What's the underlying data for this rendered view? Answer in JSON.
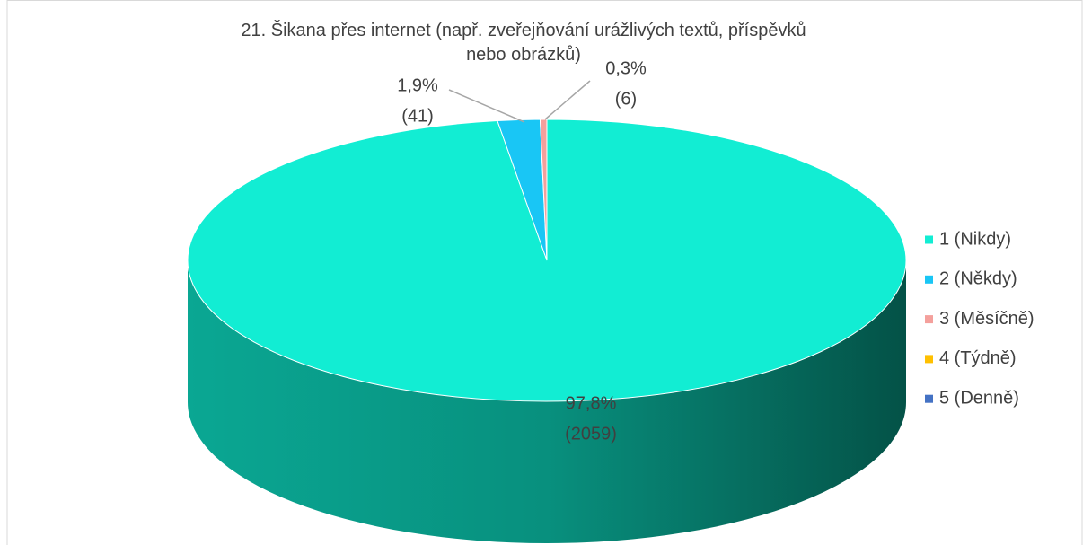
{
  "chart_data": {
    "type": "pie",
    "title": "21. Šikana přes internet (např. zveřejňování urážlivých textů, příspěvků nebo obrázků)",
    "categories": [
      "1 (Nikdy)",
      "2 (Někdy)",
      "3 (Měsíčně)",
      "4 (Týdně)",
      "5 (Denně)"
    ],
    "values": [
      97.8,
      1.9,
      0.3,
      0,
      0
    ],
    "value_labels": [
      "97,8%",
      "1,9%",
      "0,3%",
      null,
      null
    ],
    "count_labels": [
      "(2059)",
      "(41)",
      "(6)",
      null,
      null
    ],
    "colors": [
      "#12edd3",
      "#19c6f5",
      "#f4a09c",
      "#ffc000",
      "#4472c4"
    ],
    "legend": "right"
  }
}
